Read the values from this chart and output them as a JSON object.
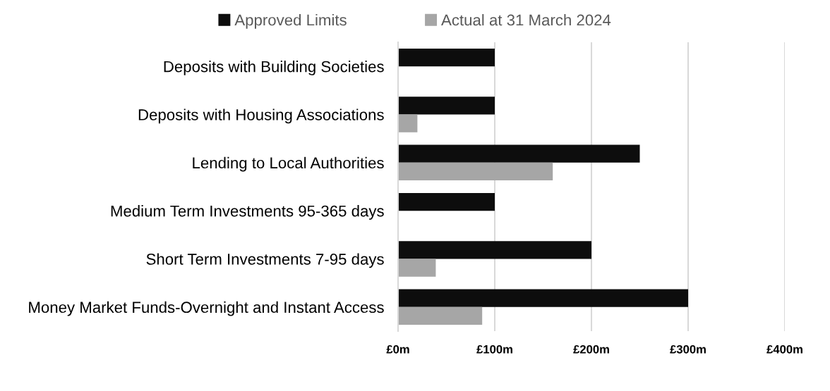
{
  "chart_data": {
    "type": "bar",
    "orientation": "horizontal",
    "categories": [
      "Deposits with Building Societies",
      "Deposits with Housing Associations",
      "Lending to Local Authorities",
      "Medium Term Investments 95-365 days",
      "Short Term Investments 7-95 days",
      "Money Market Funds-Overnight and Instant Access"
    ],
    "series": [
      {
        "name": "Approved Limits",
        "color": "#0d0d0d",
        "values": [
          100,
          100,
          250,
          100,
          200,
          300
        ]
      },
      {
        "name": "Actual at 31 March 2024",
        "color": "#a6a6a6",
        "values": [
          0,
          20,
          160,
          0,
          39,
          87
        ]
      }
    ],
    "xlim": [
      0,
      400
    ],
    "xticks": [
      {
        "value": 0,
        "label": "£0m"
      },
      {
        "value": 100,
        "label": "£100m"
      },
      {
        "value": 200,
        "label": "£200m"
      },
      {
        "value": 300,
        "label": "£300m"
      },
      {
        "value": 400,
        "label": "£400m"
      }
    ],
    "grid": "x",
    "legend": "top"
  }
}
